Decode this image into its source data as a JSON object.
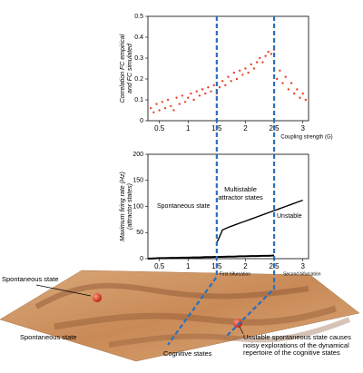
{
  "chart_data": [
    {
      "type": "scatter",
      "ylabel": [
        "Correlation FC empirical",
        "and FC simulated"
      ],
      "xlabel": "Coupling strength (G)",
      "color": "#e8462a",
      "x": [
        0.35,
        0.4,
        0.45,
        0.5,
        0.55,
        0.6,
        0.65,
        0.7,
        0.75,
        0.8,
        0.85,
        0.9,
        0.95,
        1.0,
        1.05,
        1.1,
        1.15,
        1.2,
        1.25,
        1.3,
        1.35,
        1.4,
        1.45,
        1.5,
        1.55,
        1.6,
        1.65,
        1.7,
        1.75,
        1.8,
        1.85,
        1.9,
        1.95,
        2.0,
        2.05,
        2.1,
        2.15,
        2.2,
        2.25,
        2.3,
        2.35,
        2.4,
        2.45,
        2.5,
        2.55,
        2.6,
        2.65,
        2.7,
        2.75,
        2.8,
        2.85,
        2.9,
        2.95,
        3.0,
        3.05
      ],
      "values": [
        0.06,
        0.04,
        0.08,
        0.05,
        0.09,
        0.06,
        0.1,
        0.07,
        0.05,
        0.11,
        0.08,
        0.12,
        0.09,
        0.11,
        0.13,
        0.1,
        0.14,
        0.12,
        0.15,
        0.13,
        0.16,
        0.14,
        0.17,
        0.13,
        0.16,
        0.19,
        0.17,
        0.21,
        0.19,
        0.23,
        0.2,
        0.24,
        0.22,
        0.25,
        0.23,
        0.27,
        0.25,
        0.28,
        0.3,
        0.28,
        0.31,
        0.33,
        0.32,
        0.34,
        0.2,
        0.24,
        0.18,
        0.21,
        0.15,
        0.18,
        0.13,
        0.15,
        0.11,
        0.13,
        0.1
      ],
      "xlim": [
        0.3,
        3.1
      ],
      "ylim": [
        0,
        0.5
      ],
      "xticks": [
        0.5,
        1,
        1.5,
        2,
        2.5,
        3
      ],
      "yticks": [
        0,
        0.1,
        0.2,
        0.3,
        0.4,
        0.5
      ]
    },
    {
      "type": "line",
      "ylabel": [
        "Maximum firing rate (Hz)",
        "(attractor states)"
      ],
      "annotations": [
        "Spontaneous state",
        "Multistable attractor states",
        "Unstable",
        "First bifurcation",
        "Second bifurcation"
      ],
      "x": [
        0.3,
        0.4,
        0.5,
        0.6,
        0.7,
        0.8,
        0.9,
        1.0,
        1.1,
        1.2,
        1.3,
        1.4,
        1.5,
        1.6,
        1.7,
        1.8,
        1.9,
        2.0,
        2.1,
        2.2,
        2.3,
        2.4,
        2.5,
        2.6,
        2.7,
        2.8,
        2.9,
        3.0
      ],
      "series": [
        {
          "color": "#000000",
          "values": [
            0,
            0.5,
            1,
            1,
            1.5,
            1.5,
            2,
            2,
            2.5,
            2.5,
            3,
            3,
            3.5,
            3.5,
            4,
            4,
            4.5,
            4.5,
            5,
            5,
            5.5,
            5.5,
            6,
            null,
            null,
            null,
            null,
            null
          ]
        },
        {
          "color": "#000000",
          "values": [
            null,
            null,
            null,
            null,
            null,
            null,
            null,
            null,
            null,
            null,
            null,
            null,
            30,
            55,
            60,
            64,
            68,
            72,
            76,
            80,
            84,
            88,
            92,
            96,
            100,
            104,
            108,
            112
          ]
        }
      ],
      "xlim": [
        0.3,
        3.1
      ],
      "ylim": [
        0,
        200
      ],
      "xticks": [
        0.5,
        1,
        1.5,
        2,
        2.5,
        3
      ],
      "yticks": [
        0,
        50,
        100,
        150,
        200
      ]
    }
  ],
  "illustration": {
    "annotations": [
      "Spontaneous state",
      "Spontaneous state",
      "Cognitive states",
      "Unstable spontaneous state causes noisy explorations of the dynamical repertoire of the cognitive states"
    ]
  }
}
